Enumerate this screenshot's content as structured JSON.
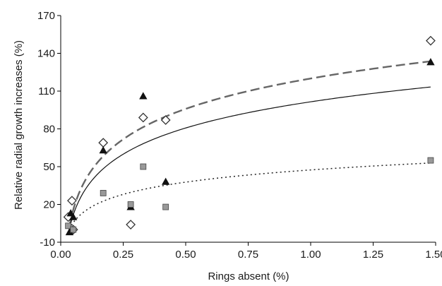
{
  "chart_data": {
    "type": "scatter",
    "title": "",
    "xlabel": "Rings absent (%)",
    "ylabel": "Relative radial growth increases (%)",
    "xlim": [
      0,
      1.5
    ],
    "ylim": [
      -10,
      170
    ],
    "x_ticks": [
      0,
      0.25,
      0.5,
      0.75,
      1.0,
      1.25,
      1.5
    ],
    "x_tick_labels": [
      "0.00",
      "0.25",
      "0.50",
      "0.75",
      "1.00",
      "1.25",
      "1.50"
    ],
    "y_ticks": [
      -10,
      20,
      50,
      80,
      110,
      140,
      170
    ],
    "y_tick_labels": [
      "-10",
      "20",
      "50",
      "80",
      "110",
      "140",
      "170"
    ],
    "grid": false,
    "legend": "none",
    "series": [
      {
        "marker": "diamond-open",
        "color": "#333333",
        "points": [
          [
            0.03,
            10
          ],
          [
            0.045,
            23
          ],
          [
            0.05,
            0
          ],
          [
            0.17,
            69
          ],
          [
            0.28,
            4
          ],
          [
            0.33,
            89
          ],
          [
            0.42,
            87
          ],
          [
            1.48,
            150
          ]
        ]
      },
      {
        "marker": "triangle-filled",
        "color": "#111111",
        "points": [
          [
            0.035,
            -2
          ],
          [
            0.04,
            13
          ],
          [
            0.05,
            10
          ],
          [
            0.17,
            63
          ],
          [
            0.28,
            18
          ],
          [
            0.33,
            106
          ],
          [
            0.42,
            38
          ],
          [
            1.48,
            133
          ]
        ]
      },
      {
        "marker": "square-filled",
        "color": "#999999",
        "points": [
          [
            0.03,
            3
          ],
          [
            0.05,
            0
          ],
          [
            0.17,
            29
          ],
          [
            0.28,
            20
          ],
          [
            0.33,
            50
          ],
          [
            0.42,
            18
          ],
          [
            1.48,
            55
          ]
        ]
      }
    ],
    "trendlines": [
      {
        "style": "dashed-gray",
        "color": "#666666",
        "a": 120.0,
        "b": 34.8,
        "x_start": 0.035,
        "x_end": 1.48
      },
      {
        "style": "solid",
        "color": "#111111",
        "a": 101.5,
        "b": 30.0,
        "x_start": 0.035,
        "x_end": 1.48
      },
      {
        "style": "dotted",
        "color": "#222222",
        "a": 47.4,
        "b": 14.0,
        "x_start": 0.035,
        "x_end": 1.48
      }
    ]
  }
}
